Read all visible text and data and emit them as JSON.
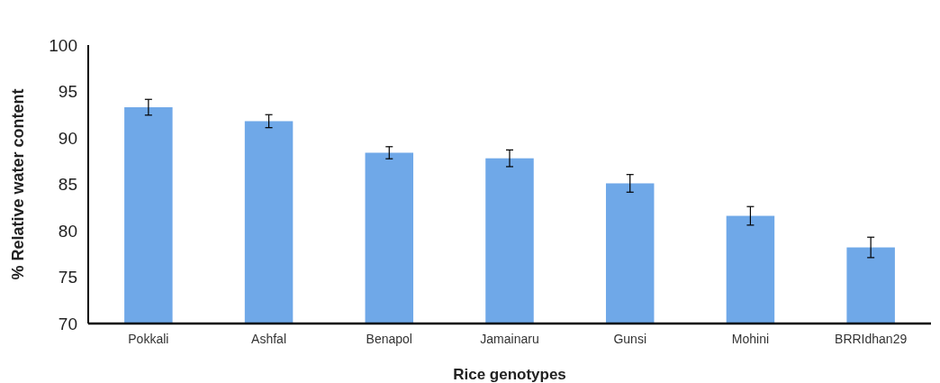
{
  "chart_data": {
    "type": "bar",
    "xlabel": "Rice genotypes",
    "ylabel": "% Relative water content",
    "categories": [
      "Pokkali",
      "Ashfal",
      "Benapol",
      "Jamainaru",
      "Gunsi",
      "Mohini",
      "BRRIdhan29"
    ],
    "values": [
      93.3,
      91.8,
      88.4,
      87.8,
      85.1,
      81.6,
      78.2
    ],
    "errors": [
      0.85,
      0.7,
      0.65,
      0.9,
      0.95,
      1.0,
      1.1
    ],
    "color": "#6fa8e8",
    "ylim": [
      70,
      100
    ],
    "yticks": [
      70,
      75,
      80,
      85,
      90,
      95,
      100
    ],
    "grid": false
  }
}
